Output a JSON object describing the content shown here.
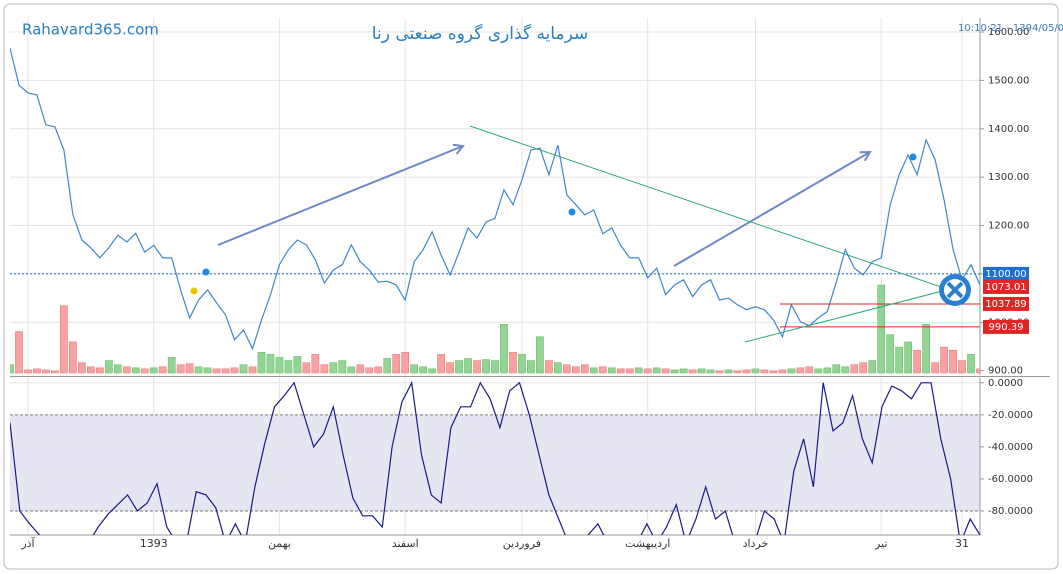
{
  "chart_data": [
    {
      "type": "line",
      "title": "سرمایه گذاری گروه صنعتی رنا",
      "source": "Rahavard365.com",
      "created": "ایجاد شده در: 1394/05/06 - 10:10:21",
      "color": "#3f86d0",
      "values": [
        1567,
        1490,
        1474,
        1470,
        1408,
        1404,
        1356,
        1222,
        1170,
        1154,
        1133,
        1154,
        1180,
        1166,
        1184,
        1145,
        1159,
        1133,
        1133,
        1067,
        1009,
        1046,
        1067,
        1040,
        1015,
        964,
        984,
        945,
        1005,
        1057,
        1119,
        1150,
        1170,
        1160,
        1129,
        1081,
        1108,
        1119,
        1160,
        1125,
        1108,
        1083,
        1085,
        1077,
        1046,
        1125,
        1150,
        1187,
        1139,
        1098,
        1145,
        1195,
        1174,
        1207,
        1215,
        1274,
        1243,
        1294,
        1356,
        1360,
        1305,
        1366,
        1263,
        1243,
        1222,
        1232,
        1183,
        1195,
        1159,
        1133,
        1133,
        1092,
        1112,
        1057,
        1077,
        1088,
        1053,
        1077,
        1088,
        1046,
        1050,
        1036,
        1026,
        1032,
        1026,
        1005,
        970,
        1036,
        1001,
        993,
        1009,
        1022,
        1083,
        1150,
        1112,
        1098,
        1125,
        1133,
        1243,
        1305,
        1346,
        1305,
        1377,
        1336,
        1253,
        1150,
        1088,
        1119,
        1077
      ],
      "volume": [
        8,
        40,
        3,
        4,
        3,
        2,
        65,
        30,
        10,
        6,
        5,
        12,
        8,
        6,
        5,
        4,
        5,
        6,
        15,
        8,
        9,
        6,
        5,
        4,
        4,
        5,
        8,
        6,
        20,
        18,
        15,
        12,
        16,
        10,
        18,
        8,
        10,
        12,
        6,
        8,
        5,
        6,
        14,
        18,
        20,
        8,
        6,
        4,
        18,
        10,
        12,
        14,
        12,
        13,
        12,
        47,
        20,
        18,
        12,
        35,
        12,
        10,
        8,
        6,
        8,
        5,
        6,
        5,
        4,
        4,
        5,
        4,
        5,
        4,
        3,
        4,
        3,
        4,
        3,
        2,
        3,
        2,
        3,
        4,
        3,
        2,
        3,
        4,
        5,
        6,
        4,
        5,
        8,
        6,
        8,
        10,
        12,
        85,
        37,
        25,
        30,
        22,
        47,
        10,
        25,
        22,
        12,
        18,
        4
      ],
      "volume_colors": {
        "up": "#93d393",
        "down": "#f7a1a1"
      },
      "xlim": [
        0,
        108
      ],
      "xticks": [
        {
          "value": 2,
          "label": "آذر"
        },
        {
          "value": 16,
          "label": "1393"
        },
        {
          "value": 30,
          "label": "بهمن"
        },
        {
          "value": 44,
          "label": "اسفند"
        },
        {
          "value": 57,
          "label": "فروردین"
        },
        {
          "value": 71,
          "label": "اردیبهشت"
        },
        {
          "value": 83,
          "label": "خرداد"
        },
        {
          "value": 97,
          "label": "تیر"
        },
        {
          "value": 106,
          "label": "31"
        }
      ],
      "ylim": [
        891,
        1629
      ],
      "yticks": [
        {
          "value": 900,
          "label": "900.00"
        },
        {
          "value": 1000,
          "label": "1000.00"
        },
        {
          "value": 1100,
          "label": "1100.00"
        },
        {
          "value": 1200,
          "label": "1200.00"
        },
        {
          "value": 1300,
          "label": "1300.00"
        },
        {
          "value": 1400,
          "label": "1400.00"
        },
        {
          "value": 1500,
          "label": "1500.00"
        },
        {
          "value": 1600,
          "label": "1600.00"
        }
      ],
      "grid": true,
      "price_labels": [
        {
          "value": 1100,
          "label": "1100.00",
          "color": "#1e6fd0"
        },
        {
          "value": 1073.01,
          "label": "1073.01",
          "color": "#e02525"
        },
        {
          "value": 1037.89,
          "label": "1037.89",
          "color": "#e02525"
        },
        {
          "value": 990.39,
          "label": "990.39",
          "color": "#e02525"
        }
      ]
    },
    {
      "type": "line",
      "color": "#1a1a8c",
      "values": [
        -25,
        -80,
        -88,
        -95,
        -100,
        -100,
        -100,
        -100,
        -100,
        -90,
        -82,
        -76,
        -70,
        -80,
        -75,
        -63,
        -90,
        -100,
        -100,
        -68,
        -70,
        -78,
        -100,
        -88,
        -100,
        -65,
        -38,
        -15,
        -8,
        0,
        -20,
        -40,
        -32,
        -15,
        -45,
        -72,
        -83,
        -83,
        -90,
        -40,
        -12,
        0,
        -45,
        -70,
        -75,
        -28,
        -15,
        -15,
        0,
        -10,
        -28,
        -5,
        0,
        -20,
        -45,
        -70,
        -85,
        -100,
        -100,
        -95,
        -88,
        -100,
        -100,
        -100,
        -100,
        -88,
        -100,
        -90,
        -76,
        -100,
        -85,
        -65,
        -85,
        -80,
        -100,
        -100,
        -100,
        -80,
        -85,
        -100,
        -55,
        -35,
        -65,
        0,
        -30,
        -25,
        -8,
        -35,
        -50,
        -15,
        -2,
        -5,
        -10,
        0,
        0,
        -35,
        -60,
        -100,
        -85,
        -95
      ],
      "xlim": [
        0,
        99
      ],
      "ylim": [
        -95,
        3
      ],
      "yticks": [
        {
          "value": 0,
          "label": "0.0000"
        },
        {
          "value": -20,
          "label": "-20.0000"
        },
        {
          "value": -40,
          "label": "-40.0000"
        },
        {
          "value": -60,
          "label": "-60.0000"
        },
        {
          "value": -80,
          "label": "-80.0000"
        }
      ],
      "band": [
        -80,
        -20
      ],
      "band_color": "#e6e6f3",
      "grid": true
    }
  ]
}
